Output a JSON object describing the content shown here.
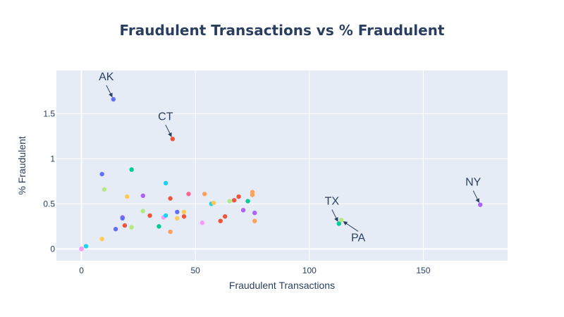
{
  "chart_data": {
    "type": "scatter",
    "title": "Fraudulent Transactions vs % Fraudulent",
    "xlabel": "Fraudulent Transactions",
    "ylabel": "% Fraudulent",
    "xlim": [
      -11,
      187
    ],
    "ylim": [
      -0.13,
      1.98
    ],
    "x_ticks": [
      0,
      50,
      100,
      150
    ],
    "y_ticks": [
      0,
      0.5,
      1,
      1.5
    ],
    "y_tick_labels": [
      "0",
      "0.5",
      "1",
      "1.5"
    ],
    "grid": true,
    "legend": "none",
    "points": [
      {
        "x": 14,
        "y": 1.66,
        "color": "#636efa"
      },
      {
        "x": 40,
        "y": 1.22,
        "color": "#ef553b"
      },
      {
        "x": 175,
        "y": 0.49,
        "color": "#ab63fa"
      },
      {
        "x": 113,
        "y": 0.28,
        "color": "#00cc96"
      },
      {
        "x": 114,
        "y": 0.32,
        "color": "#b6e880"
      },
      {
        "x": 0,
        "y": 0.0,
        "color": "#636efa"
      },
      {
        "x": 0,
        "y": 0.0,
        "color": "#ff97ff"
      },
      {
        "x": 2,
        "y": 0.03,
        "color": "#19d3f3"
      },
      {
        "x": 9,
        "y": 0.11,
        "color": "#fecb52"
      },
      {
        "x": 9,
        "y": 0.83,
        "color": "#636efa"
      },
      {
        "x": 10,
        "y": 0.66,
        "color": "#b6e880"
      },
      {
        "x": 15,
        "y": 0.22,
        "color": "#636efa"
      },
      {
        "x": 18,
        "y": 0.35,
        "color": "#ab63fa"
      },
      {
        "x": 18,
        "y": 0.34,
        "color": "#636efa"
      },
      {
        "x": 19,
        "y": 0.26,
        "color": "#ef553b"
      },
      {
        "x": 20,
        "y": 0.58,
        "color": "#fecb52"
      },
      {
        "x": 22,
        "y": 0.88,
        "color": "#00cc96"
      },
      {
        "x": 22,
        "y": 0.24,
        "color": "#b6e880"
      },
      {
        "x": 27,
        "y": 0.59,
        "color": "#ab63fa"
      },
      {
        "x": 27,
        "y": 0.42,
        "color": "#b6e880"
      },
      {
        "x": 30,
        "y": 0.37,
        "color": "#ef553b"
      },
      {
        "x": 34,
        "y": 0.25,
        "color": "#00cc96"
      },
      {
        "x": 36,
        "y": 0.35,
        "color": "#ff97ff"
      },
      {
        "x": 37,
        "y": 0.37,
        "color": "#19d3f3"
      },
      {
        "x": 37,
        "y": 0.73,
        "color": "#19d3f3"
      },
      {
        "x": 39,
        "y": 0.56,
        "color": "#ef553b"
      },
      {
        "x": 39,
        "y": 0.19,
        "color": "#ffa15a"
      },
      {
        "x": 42,
        "y": 0.41,
        "color": "#636efa"
      },
      {
        "x": 42,
        "y": 0.34,
        "color": "#fecb52"
      },
      {
        "x": 45,
        "y": 0.41,
        "color": "#fecb52"
      },
      {
        "x": 45,
        "y": 0.36,
        "color": "#ef553b"
      },
      {
        "x": 47,
        "y": 0.61,
        "color": "#ff6692"
      },
      {
        "x": 53,
        "y": 0.29,
        "color": "#ff97ff"
      },
      {
        "x": 54,
        "y": 0.61,
        "color": "#ffa15a"
      },
      {
        "x": 57,
        "y": 0.5,
        "color": "#19d3f3"
      },
      {
        "x": 58,
        "y": 0.51,
        "color": "#fecb52"
      },
      {
        "x": 61,
        "y": 0.31,
        "color": "#ef553b"
      },
      {
        "x": 63,
        "y": 0.36,
        "color": "#ef553b"
      },
      {
        "x": 65,
        "y": 0.53,
        "color": "#b6e880"
      },
      {
        "x": 67,
        "y": 0.54,
        "color": "#ef553b"
      },
      {
        "x": 69,
        "y": 0.58,
        "color": "#ef553b"
      },
      {
        "x": 71,
        "y": 0.43,
        "color": "#ab63fa"
      },
      {
        "x": 73,
        "y": 0.53,
        "color": "#00cc96"
      },
      {
        "x": 75,
        "y": 0.63,
        "color": "#ffa15a"
      },
      {
        "x": 75,
        "y": 0.6,
        "color": "#ffa15a"
      },
      {
        "x": 76,
        "y": 0.4,
        "color": "#ab63fa"
      },
      {
        "x": 76,
        "y": 0.31,
        "color": "#ffa15a"
      }
    ],
    "annotations": [
      {
        "text": "AK",
        "x": 14,
        "y": 1.66
      },
      {
        "text": "CT",
        "x": 40,
        "y": 1.22
      },
      {
        "text": "NY",
        "x": 175,
        "y": 0.49
      },
      {
        "text": "TX",
        "x": 113,
        "y": 0.28
      },
      {
        "text": "PA",
        "x": 114,
        "y": 0.32
      }
    ]
  }
}
